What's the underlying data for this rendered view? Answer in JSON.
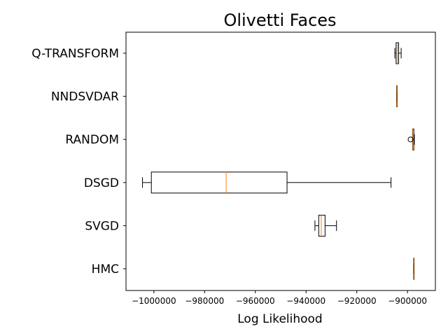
{
  "chart_data": {
    "type": "boxplot",
    "orientation": "horizontal",
    "title": "Olivetti Faces",
    "xlabel": "Log Likelihood",
    "ylabel": "",
    "xlim": [
      -1011000,
      -889000
    ],
    "xticks": [
      -1000000,
      -980000,
      -960000,
      -940000,
      -920000,
      -900000
    ],
    "xtick_labels": [
      "−1000000",
      "−980000",
      "−960000",
      "−940000",
      "−920000",
      "−900000"
    ],
    "grid": false,
    "categories": [
      "HMC",
      "SVGD",
      "DSGD",
      "RANDOM",
      "NNDSVDAR",
      "Q-TRANSFORM"
    ],
    "boxes": [
      {
        "label": "HMC",
        "whisker_low": -897600,
        "q1": -897600,
        "median": -897500,
        "q3": -897400,
        "whisker_high": -897400,
        "outliers": []
      },
      {
        "label": "SVGD",
        "whisker_low": -936500,
        "q1": -935000,
        "median": -934000,
        "q3": -932500,
        "whisker_high": -928000,
        "outliers": []
      },
      {
        "label": "DSGD",
        "whisker_low": -1004500,
        "q1": -1001000,
        "median": -971500,
        "q3": -947500,
        "whisker_high": -906500,
        "outliers": []
      },
      {
        "label": "RANDOM",
        "whisker_low": -898000,
        "q1": -898000,
        "median": -897900,
        "q3": -897500,
        "whisker_high": -897300,
        "outliers": [
          -898800
        ]
      },
      {
        "label": "NNDSVDAR",
        "whisker_low": -904300,
        "q1": -904300,
        "median": -904200,
        "q3": -904100,
        "whisker_high": -904100,
        "outliers": []
      },
      {
        "label": "Q-TRANSFORM",
        "whisker_low": -905000,
        "q1": -904500,
        "median": -904000,
        "q3": -903500,
        "whisker_high": -902500,
        "outliers": []
      }
    ],
    "colors": {
      "box": "#000000",
      "median": "#ff7f0e",
      "axes": "#000000"
    }
  }
}
